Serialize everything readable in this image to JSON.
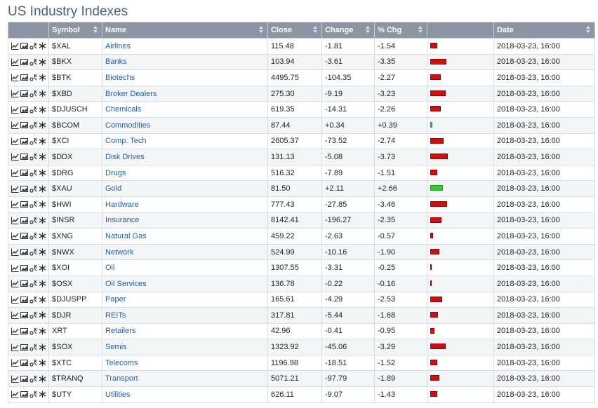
{
  "page": {
    "title": "US Industry Indexes"
  },
  "columns": {
    "tools": "",
    "symbol": "Symbol",
    "name": "Name",
    "close": "Close",
    "change": "Change",
    "pct": "% Chg",
    "bar": "",
    "date": "Date"
  },
  "colors": {
    "negative": "#cc1111",
    "positive": "#33cc33",
    "header_bg": "#8c96a3",
    "link": "#1f5fa8"
  },
  "icons": [
    "line-chart-icon",
    "candlestick-chart-icon",
    "pnf-chart-icon",
    "seasonality-icon"
  ],
  "rows": [
    {
      "symbol": "$XAL",
      "name": "Airlines",
      "close": "115.48",
      "change": "-1.81",
      "pct": "-1.54",
      "pct_value": -1.54,
      "date": "2018-03-23, 16:00"
    },
    {
      "symbol": "$BKX",
      "name": "Banks",
      "close": "103.94",
      "change": "-3.61",
      "pct": "-3.35",
      "pct_value": -3.35,
      "date": "2018-03-23, 16:00"
    },
    {
      "symbol": "$BTK",
      "name": "Biotechs",
      "close": "4495.75",
      "change": "-104.35",
      "pct": "-2.27",
      "pct_value": -2.27,
      "date": "2018-03-23, 16:00"
    },
    {
      "symbol": "$XBD",
      "name": "Broker Dealers",
      "close": "275.30",
      "change": "-9.19",
      "pct": "-3.23",
      "pct_value": -3.23,
      "date": "2018-03-23, 16:00"
    },
    {
      "symbol": "$DJUSCH",
      "name": "Chemicals",
      "close": "619.35",
      "change": "-14.31",
      "pct": "-2.26",
      "pct_value": -2.26,
      "date": "2018-03-23, 16:00"
    },
    {
      "symbol": "$BCOM",
      "name": "Commodities",
      "close": "87.44",
      "change": "+0.34",
      "pct": "+0.39",
      "pct_value": 0.39,
      "date": "2018-03-23, 16:00"
    },
    {
      "symbol": "$XCI",
      "name": "Comp. Tech",
      "close": "2605.37",
      "change": "-73.52",
      "pct": "-2.74",
      "pct_value": -2.74,
      "date": "2018-03-23, 16:00"
    },
    {
      "symbol": "$DDX",
      "name": "Disk Drives",
      "close": "131.13",
      "change": "-5.08",
      "pct": "-3.73",
      "pct_value": -3.73,
      "date": "2018-03-23, 16:00"
    },
    {
      "symbol": "$DRG",
      "name": "Drugs",
      "close": "516.32",
      "change": "-7.89",
      "pct": "-1.51",
      "pct_value": -1.51,
      "date": "2018-03-23, 16:00"
    },
    {
      "symbol": "$XAU",
      "name": "Gold",
      "close": "81.50",
      "change": "+2.11",
      "pct": "+2.66",
      "pct_value": 2.66,
      "date": "2018-03-23, 16:00"
    },
    {
      "symbol": "$HWI",
      "name": "Hardware",
      "close": "777.43",
      "change": "-27.85",
      "pct": "-3.46",
      "pct_value": -3.46,
      "date": "2018-03-23, 16:00"
    },
    {
      "symbol": "$INSR",
      "name": "Insurance",
      "close": "8142.41",
      "change": "-196.27",
      "pct": "-2.35",
      "pct_value": -2.35,
      "date": "2018-03-23, 16:00"
    },
    {
      "symbol": "$XNG",
      "name": "Natural Gas",
      "close": "459.22",
      "change": "-2.63",
      "pct": "-0.57",
      "pct_value": -0.57,
      "date": "2018-03-23, 16:00"
    },
    {
      "symbol": "$NWX",
      "name": "Network",
      "close": "524.99",
      "change": "-10.16",
      "pct": "-1.90",
      "pct_value": -1.9,
      "date": "2018-03-23, 16:00"
    },
    {
      "symbol": "$XOI",
      "name": "Oil",
      "close": "1307.55",
      "change": "-3.31",
      "pct": "-0.25",
      "pct_value": -0.25,
      "date": "2018-03-23, 16:00"
    },
    {
      "symbol": "$OSX",
      "name": "Oil Services",
      "close": "136.78",
      "change": "-0.22",
      "pct": "-0.16",
      "pct_value": -0.16,
      "date": "2018-03-23, 16:00"
    },
    {
      "symbol": "$DJUSPP",
      "name": "Paper",
      "close": "165.61",
      "change": "-4.29",
      "pct": "-2.53",
      "pct_value": -2.53,
      "date": "2018-03-23, 16:00"
    },
    {
      "symbol": "$DJR",
      "name": "REITs",
      "close": "317.81",
      "change": "-5.44",
      "pct": "-1.68",
      "pct_value": -1.68,
      "date": "2018-03-23, 16:00"
    },
    {
      "symbol": "XRT",
      "name": "Retailers",
      "close": "42.96",
      "change": "-0.41",
      "pct": "-0.95",
      "pct_value": -0.95,
      "date": "2018-03-23, 16:00"
    },
    {
      "symbol": "$SOX",
      "name": "Semis",
      "close": "1323.92",
      "change": "-45.06",
      "pct": "-3.29",
      "pct_value": -3.29,
      "date": "2018-03-23, 16:00"
    },
    {
      "symbol": "$XTC",
      "name": "Telecoms",
      "close": "1196.98",
      "change": "-18.51",
      "pct": "-1.52",
      "pct_value": -1.52,
      "date": "2018-03-23, 16:00"
    },
    {
      "symbol": "$TRANQ",
      "name": "Transport",
      "close": "5071.21",
      "change": "-97.79",
      "pct": "-1.89",
      "pct_value": -1.89,
      "date": "2018-03-23, 16:00"
    },
    {
      "symbol": "$UTY",
      "name": "Utilities",
      "close": "626.11",
      "change": "-9.07",
      "pct": "-1.43",
      "pct_value": -1.43,
      "date": "2018-03-23, 16:00"
    }
  ]
}
